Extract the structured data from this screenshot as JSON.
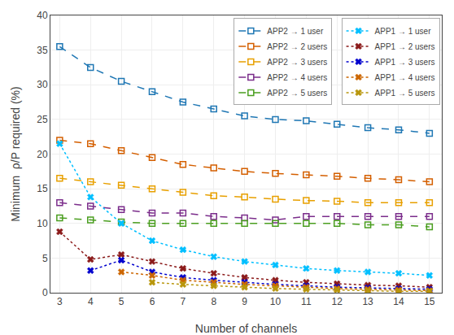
{
  "chart_data": {
    "type": "line",
    "xlabel": "Number of channels",
    "ylabel": "Minimum  ρ/P required (%)",
    "x": [
      3,
      4,
      5,
      6,
      7,
      8,
      9,
      10,
      11,
      12,
      13,
      14,
      15
    ],
    "series": [
      {
        "name": "APP2 → 1 user",
        "color": "#1f77b4",
        "line_style": "dashed",
        "marker": "square",
        "values": [
          35.5,
          32.5,
          30.5,
          29.0,
          27.5,
          26.5,
          25.5,
          25.0,
          24.8,
          24.3,
          23.8,
          23.5,
          23.0
        ]
      },
      {
        "name": "APP2 → 2 users",
        "color": "#d45f00",
        "line_style": "dashed",
        "marker": "square",
        "values": [
          22.0,
          21.5,
          20.5,
          19.5,
          18.5,
          18.0,
          17.5,
          17.2,
          17.0,
          16.8,
          16.5,
          16.3,
          16.0
        ]
      },
      {
        "name": "APP2 → 3 users",
        "color": "#e8a000",
        "line_style": "dashed",
        "marker": "square",
        "values": [
          16.5,
          16.0,
          15.5,
          15.0,
          14.5,
          14.0,
          13.8,
          13.5,
          13.3,
          13.2,
          13.0,
          13.0,
          13.0
        ]
      },
      {
        "name": "APP2 → 4 users",
        "color": "#7b2d8b",
        "line_style": "dashed",
        "marker": "square",
        "values": [
          13.0,
          12.5,
          12.0,
          11.5,
          11.5,
          11.0,
          10.8,
          10.5,
          11.0,
          11.0,
          11.0,
          11.0,
          11.0
        ]
      },
      {
        "name": "APP2 → 5 users",
        "color": "#4a9e1f",
        "line_style": "dashed",
        "marker": "square",
        "values": [
          10.8,
          10.5,
          10.2,
          10.0,
          10.0,
          10.0,
          10.0,
          10.0,
          10.0,
          10.0,
          9.8,
          9.8,
          9.5
        ]
      },
      {
        "name": "APP1 → 1 user",
        "color": "#00bfff",
        "line_style": "dotted",
        "marker": "x",
        "values": [
          21.5,
          13.8,
          10.0,
          7.5,
          6.2,
          5.2,
          4.5,
          4.0,
          3.5,
          3.2,
          3.0,
          2.8,
          2.5
        ]
      },
      {
        "name": "APP1 → 2 users",
        "color": "#8b1a1a",
        "line_style": "dotted",
        "marker": "x",
        "values": [
          8.8,
          4.8,
          5.5,
          4.5,
          3.5,
          2.8,
          2.2,
          1.8,
          1.5,
          1.3,
          1.1,
          1.0,
          0.8
        ]
      },
      {
        "name": "APP1 → 3 users",
        "color": "#0000cd",
        "line_style": "dotted",
        "marker": "x",
        "values": [
          null,
          3.2,
          4.7,
          3.0,
          2.2,
          1.8,
          1.5,
          1.2,
          1.0,
          0.8,
          0.7,
          0.6,
          0.5
        ]
      },
      {
        "name": "APP1 → 4 users",
        "color": "#cc6600",
        "line_style": "dotted",
        "marker": "x",
        "values": [
          null,
          null,
          3.0,
          2.5,
          1.8,
          1.5,
          1.2,
          1.0,
          0.8,
          0.6,
          0.5,
          0.4,
          0.3
        ]
      },
      {
        "name": "APP1 → 5 users",
        "color": "#b8960c",
        "line_style": "dotted",
        "marker": "x",
        "values": [
          null,
          null,
          null,
          1.5,
          1.2,
          1.0,
          0.8,
          0.6,
          0.5,
          0.4,
          0.3,
          0.2,
          0.2
        ]
      }
    ],
    "xlim": [
      2.7,
      15.4
    ],
    "xticks": [
      3,
      4,
      5,
      6,
      7,
      8,
      9,
      10,
      11,
      12,
      13,
      14,
      15
    ],
    "ylim": [
      0,
      40
    ],
    "yticks": [
      0,
      5,
      10,
      15,
      20,
      25,
      30,
      35,
      40
    ],
    "grid": true,
    "legend": "upper right"
  }
}
